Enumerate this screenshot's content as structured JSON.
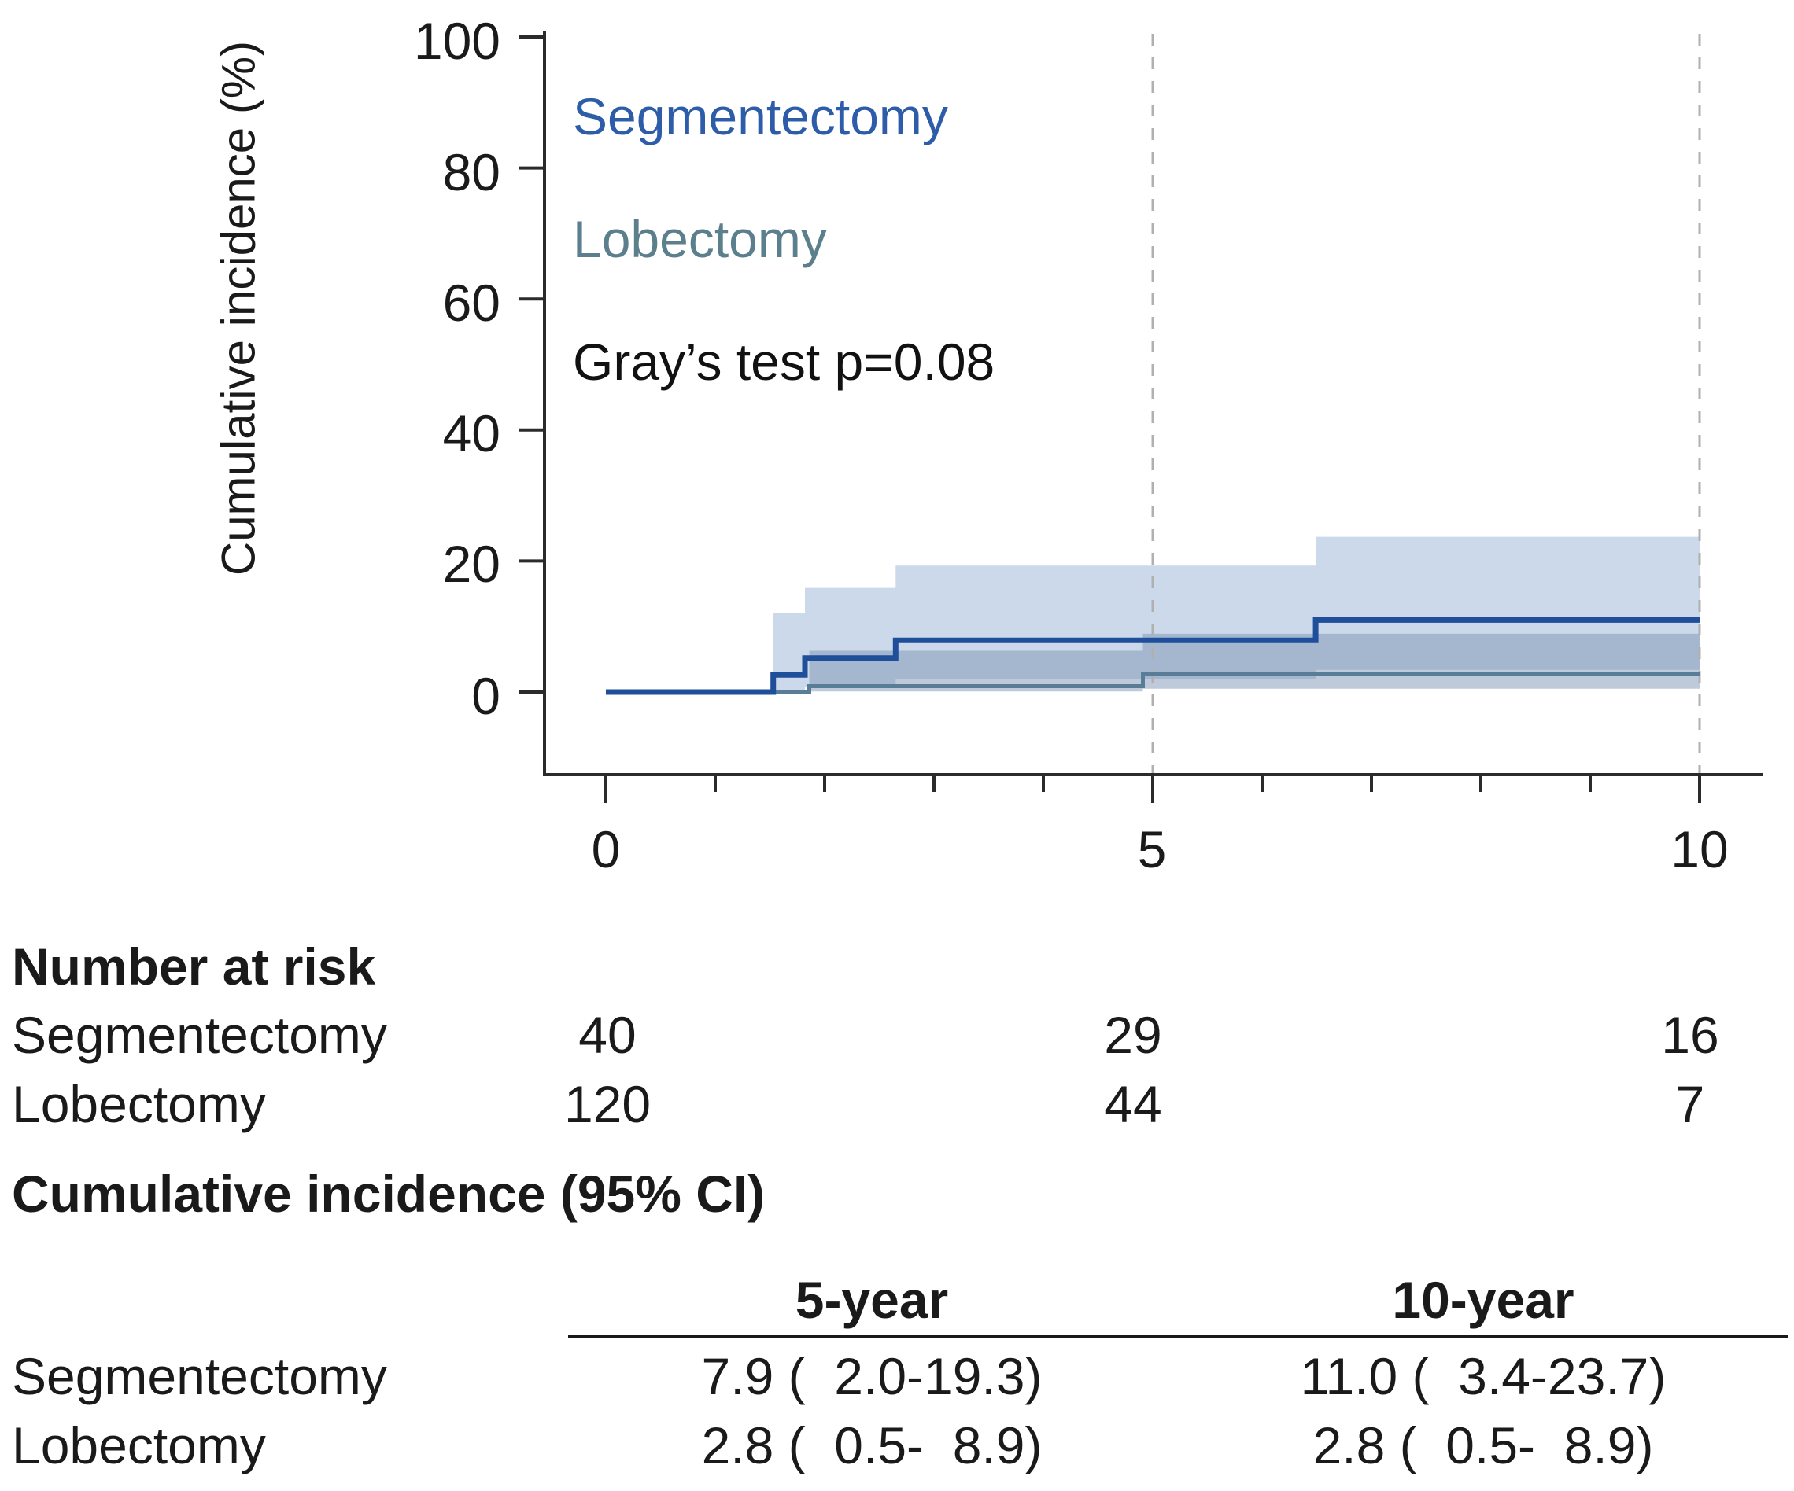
{
  "figure": {
    "legend": {
      "series1": "Segmentectomy",
      "series2": "Lobectomy",
      "stat_label": "Gray’s test p=0.08"
    },
    "y_axis": {
      "title": "Cumulative incidence (%)",
      "tick_labels": [
        "100",
        "80",
        "60",
        "40",
        "20",
        "0"
      ]
    },
    "x_axis": {
      "tick_labels": [
        "0",
        "5",
        "10"
      ]
    }
  },
  "risk_table": {
    "title": "Number at risk",
    "rows": [
      {
        "label": "Segmentectomy",
        "values": [
          "40",
          "29",
          "16"
        ]
      },
      {
        "label": "Lobectomy",
        "values": [
          "120",
          "44",
          "7"
        ]
      }
    ]
  },
  "ci_table": {
    "title": "Cumulative incidence (95% CI)",
    "col_headers": [
      "5-year",
      "10-year"
    ],
    "rows": [
      {
        "label": "Segmentectomy",
        "values": [
          "7.9 (  2.0-19.3)",
          "11.0 (  3.4-23.7)"
        ]
      },
      {
        "label": "Lobectomy",
        "values": [
          "2.8 (  0.5-  8.9)",
          "2.8 (  0.5-  8.9)"
        ]
      }
    ]
  },
  "colors": {
    "seg_line": "#1f4e9b",
    "seg_text": "#2d5da9",
    "seg_band": "#ccd9ea",
    "lob_line": "#5a7d97",
    "lob_text": "#5b7f8d",
    "lob_band": "rgba(125,150,180,0.5)",
    "dashed_guide": "#b0b0b0",
    "axis": "#2b2b2b",
    "text": "#1a1a1a"
  },
  "chart_data": {
    "type": "line",
    "subtype": "cumulative-incidence-step-with-ci-bands",
    "title": "",
    "xlabel": "",
    "ylabel": "Cumulative incidence (%)",
    "xlim": [
      0,
      10
    ],
    "ylim": [
      0,
      100
    ],
    "x_ticks": [
      0,
      5,
      10
    ],
    "x_minor_ticks": [
      1,
      2,
      3,
      4,
      6,
      7,
      8,
      9
    ],
    "y_ticks": [
      0,
      20,
      40,
      60,
      80,
      100
    ],
    "dashed_guides_x": [
      5,
      10
    ],
    "grid": false,
    "legend_position": "top-left-inside",
    "grays_test_p": 0.08,
    "series": [
      {
        "name": "Segmentectomy",
        "steps": [
          [
            0,
            0
          ],
          [
            1.53,
            2.6
          ],
          [
            1.82,
            5.2
          ],
          [
            2.65,
            7.9
          ],
          [
            6.49,
            11.0
          ]
        ],
        "end": 10,
        "ci_upper": [
          [
            1.53,
            12.0
          ],
          [
            1.82,
            15.9
          ],
          [
            2.65,
            19.3
          ],
          [
            6.49,
            23.7
          ]
        ],
        "ci_lower": [
          [
            1.53,
            0.2
          ],
          [
            1.82,
            0.8
          ],
          [
            2.65,
            2.0
          ],
          [
            6.49,
            3.4
          ]
        ]
      },
      {
        "name": "Lobectomy",
        "steps": [
          [
            0,
            0
          ],
          [
            1.86,
            0.9
          ],
          [
            4.91,
            2.8
          ]
        ],
        "end": 10,
        "ci_upper": [
          [
            1.86,
            6.3
          ],
          [
            4.91,
            8.9
          ]
        ],
        "ci_lower": [
          [
            1.86,
            0.1
          ],
          [
            4.91,
            0.5
          ]
        ]
      }
    ],
    "estimates": {
      "five_year": {
        "Segmentectomy": "7.9 (2.0-19.3)",
        "Lobectomy": "2.8 (0.5-8.9)"
      },
      "ten_year": {
        "Segmentectomy": "11.0 (3.4-23.7)",
        "Lobectomy": "2.8 (0.5-8.9)"
      }
    },
    "number_at_risk": {
      "times": [
        0,
        5,
        10
      ],
      "Segmentectomy": [
        40,
        29,
        16
      ],
      "Lobectomy": [
        120,
        44,
        7
      ]
    }
  }
}
